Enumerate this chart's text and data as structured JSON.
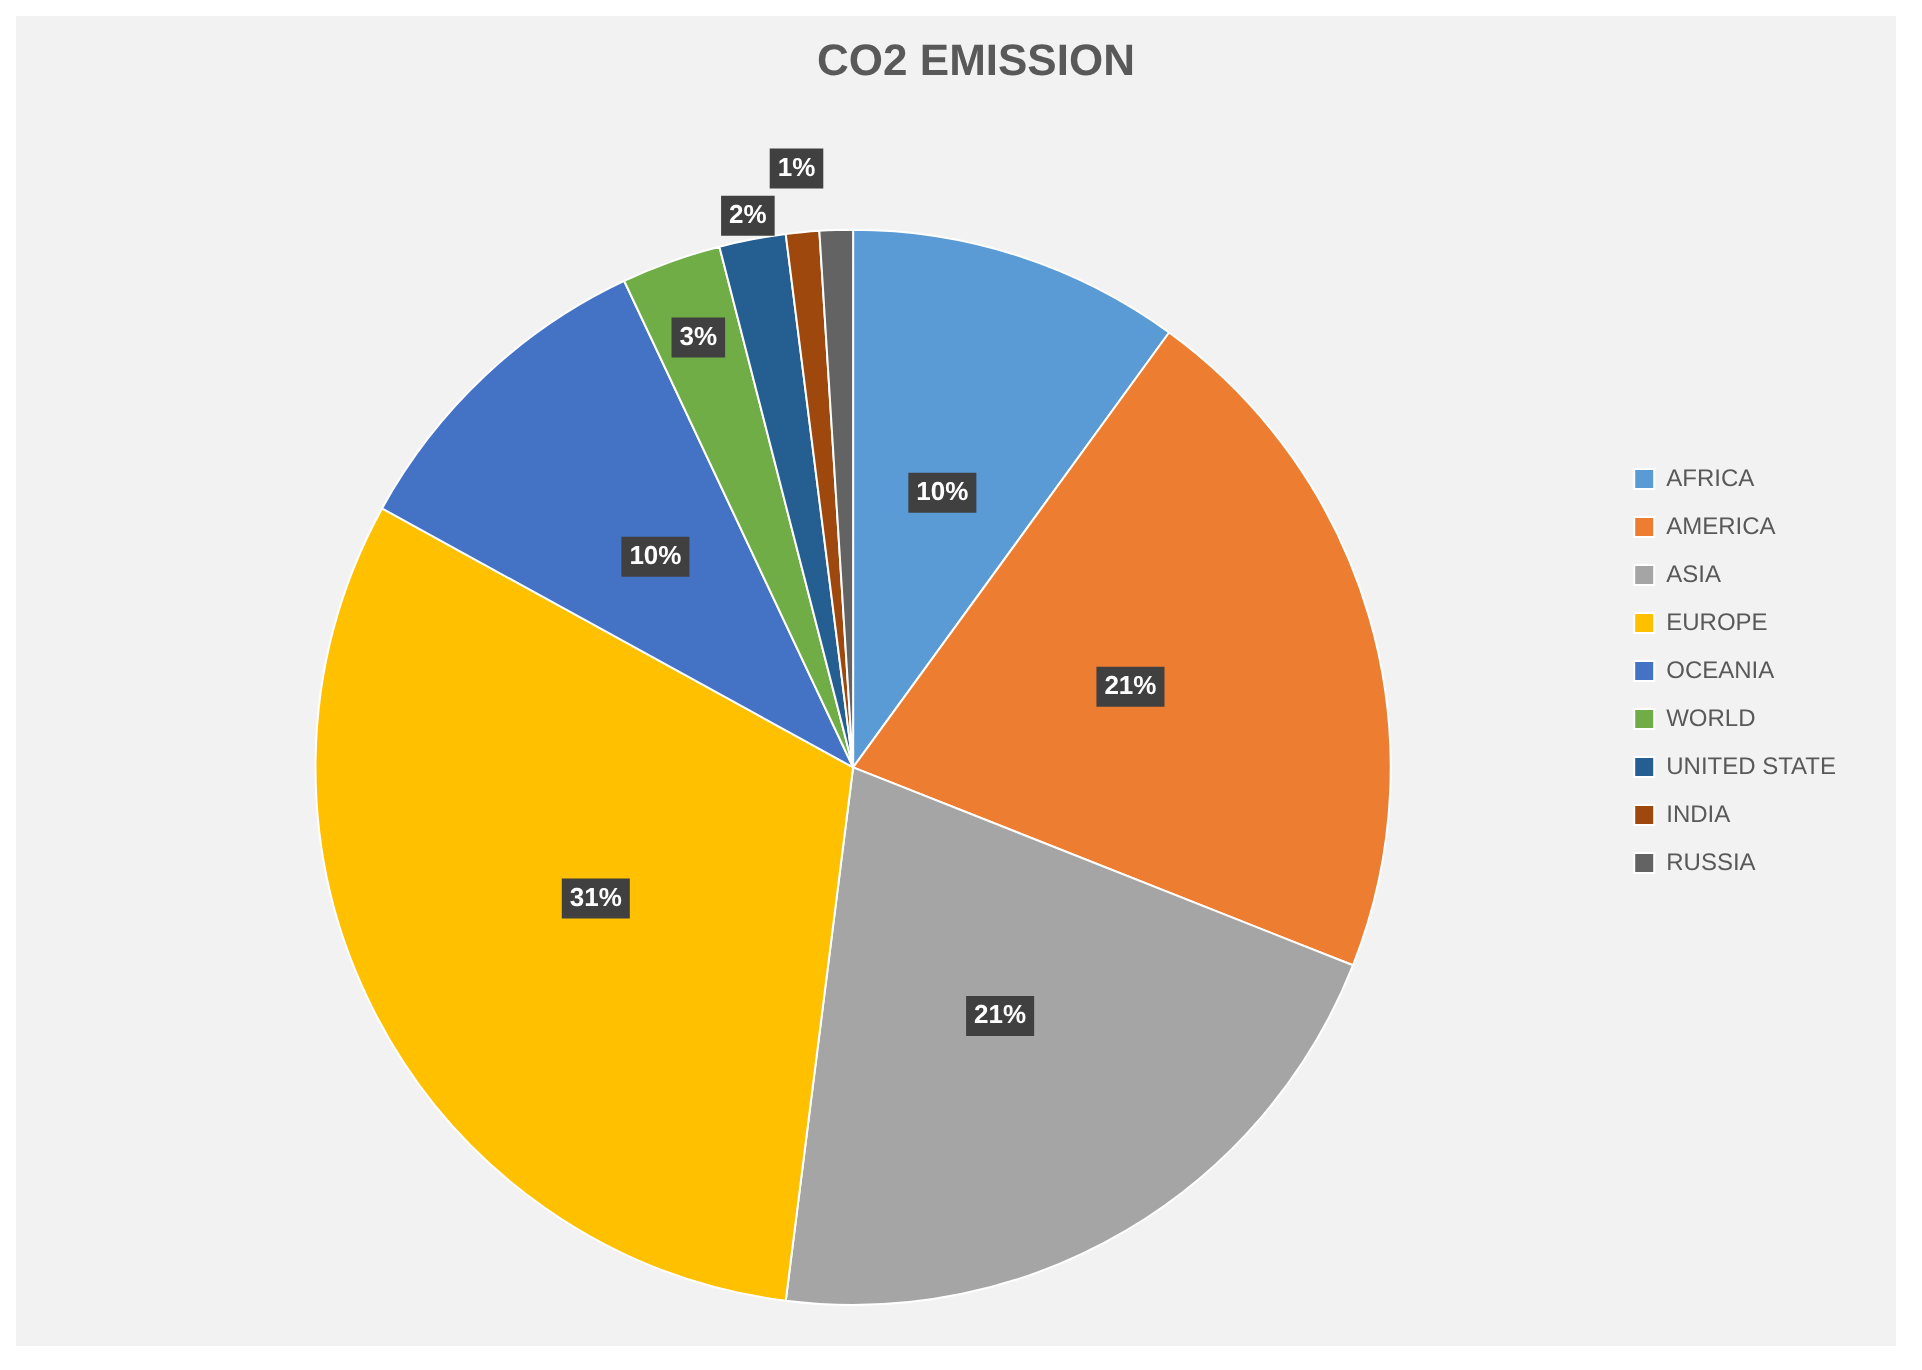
{
  "chart_data": {
    "type": "pie",
    "title": "CO2 EMISSION",
    "categories": [
      "AFRICA",
      "AMERICA",
      "ASIA",
      "EUROPE",
      "OCEANIA",
      "WORLD",
      "UNITED STATE",
      "INDIA",
      "RUSSIA"
    ],
    "values": [
      10,
      21,
      21,
      31,
      10,
      3,
      2,
      1,
      1
    ],
    "colors": [
      "#5b9bd5",
      "#ed7d31",
      "#a5a5a5",
      "#ffc000",
      "#4472c4",
      "#70ad47",
      "#255e91",
      "#9e480e",
      "#636363"
    ],
    "value_labels": [
      "10%",
      "21%",
      "21%",
      "31%",
      "10%",
      "3%",
      "2%",
      "1%",
      null
    ],
    "legend": "right"
  }
}
